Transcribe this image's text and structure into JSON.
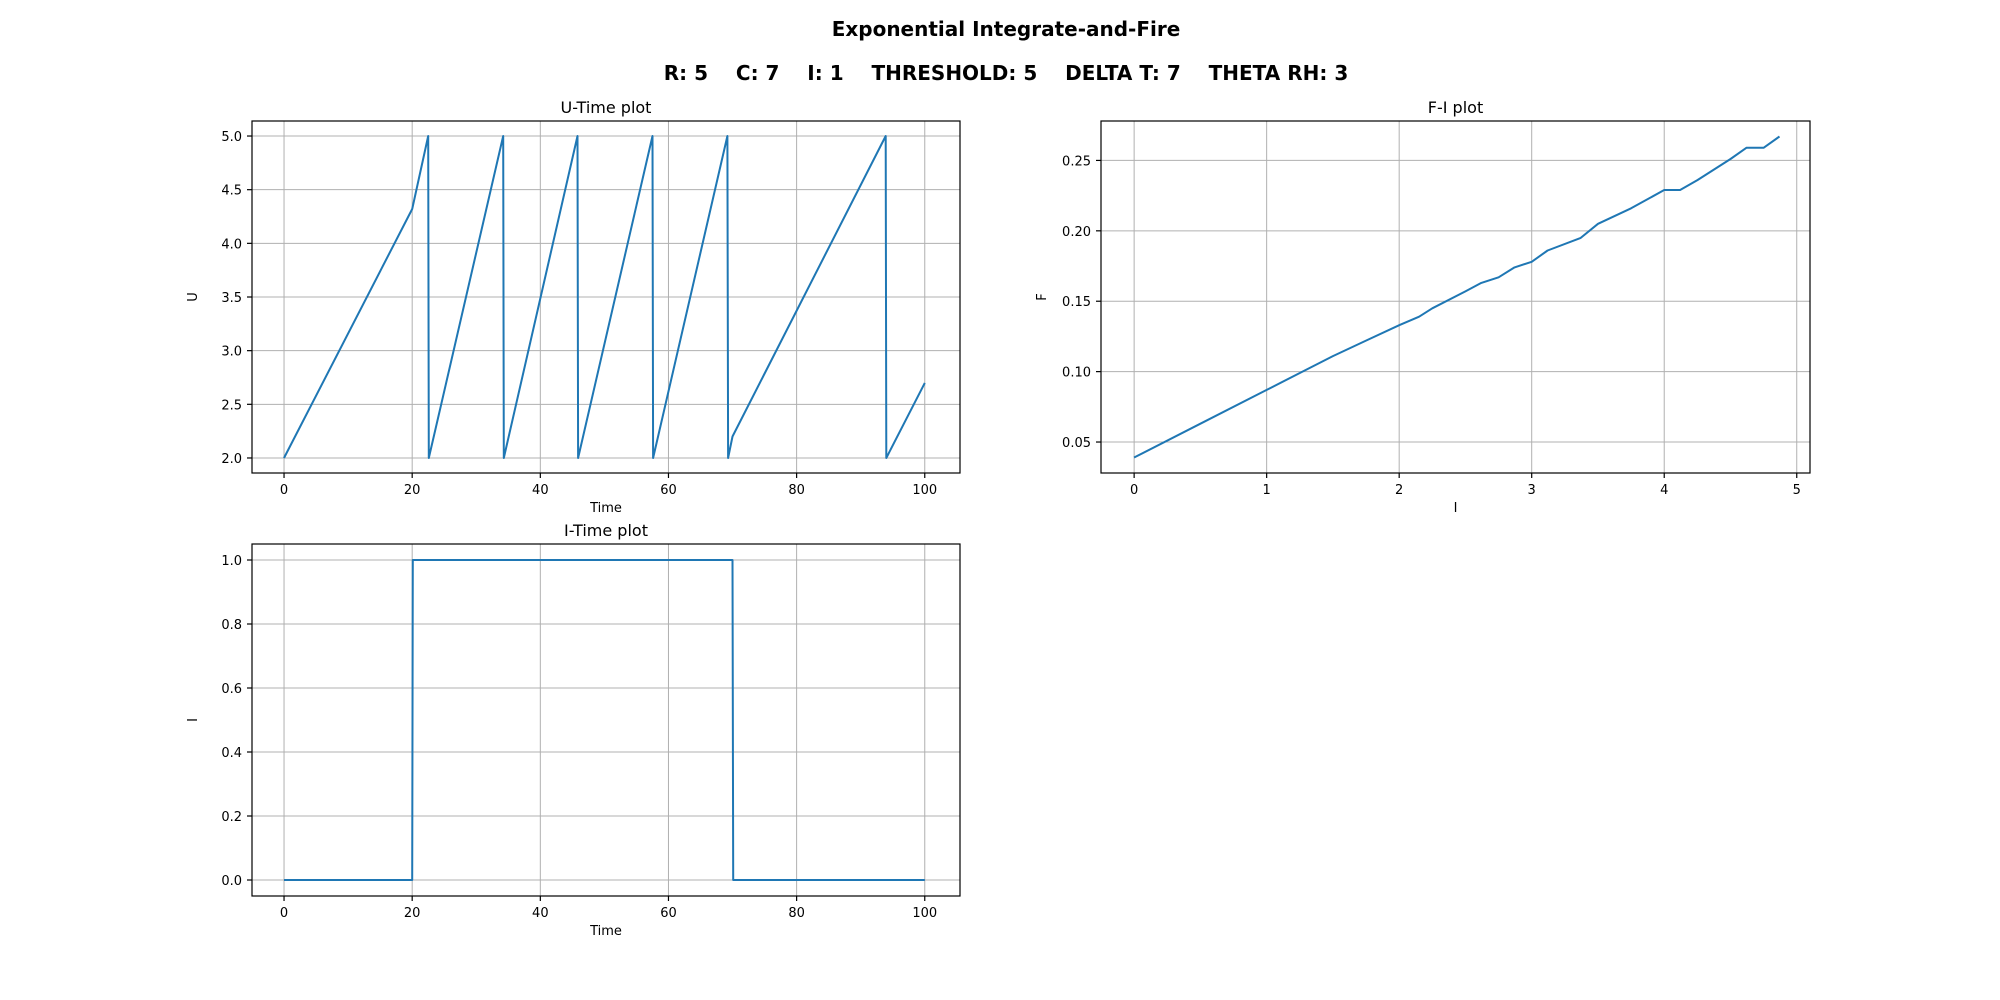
{
  "figure": {
    "title": "Exponential Integrate-and-Fire",
    "params_line": "R: 5    C: 7    I: 1    THRESHOLD: 5    DELTA T: 7    THETA RH: 3"
  },
  "colors": {
    "series": "#1f77b4",
    "grid": "#b0b0b0"
  },
  "chart_data": [
    {
      "id": "u_time",
      "type": "line",
      "title": "U-Time plot",
      "xlabel": "Time",
      "ylabel": "U",
      "xlim": [
        -5,
        105.5
      ],
      "ylim": [
        1.86,
        5.14
      ],
      "xticks": [
        0,
        20,
        40,
        60,
        80,
        100
      ],
      "xtick_labels": [
        "0",
        "20",
        "40",
        "60",
        "80",
        "100"
      ],
      "yticks": [
        2.0,
        2.5,
        3.0,
        3.5,
        4.0,
        4.5,
        5.0
      ],
      "ytick_labels": [
        "2.0",
        "2.5",
        "3.0",
        "3.5",
        "4.0",
        "4.5",
        "5.0"
      ],
      "grid": true,
      "series": [
        {
          "x": [
            0,
            20,
            22.5,
            22.6,
            34.2,
            34.3,
            45.8,
            45.9,
            57.5,
            57.6,
            69.2,
            69.3,
            70,
            93.9,
            94.0,
            100
          ],
          "y": [
            2.0,
            4.32,
            5.0,
            2.0,
            5.0,
            2.0,
            5.0,
            2.0,
            5.0,
            2.0,
            5.0,
            2.0,
            2.2,
            5.0,
            2.0,
            2.7
          ]
        }
      ]
    },
    {
      "id": "f_i",
      "type": "line",
      "title": "F-I plot",
      "xlabel": "I",
      "ylabel": "F",
      "xlim": [
        -0.25,
        5.1
      ],
      "ylim": [
        0.028,
        0.278
      ],
      "xticks": [
        0,
        1,
        2,
        3,
        4,
        5
      ],
      "xtick_labels": [
        "0",
        "1",
        "2",
        "3",
        "4",
        "5"
      ],
      "yticks": [
        0.05,
        0.1,
        0.15,
        0.2,
        0.25
      ],
      "ytick_labels": [
        "0.05",
        "0.10",
        "0.15",
        "0.20",
        "0.25"
      ],
      "grid": true,
      "series": [
        {
          "x": [
            0,
            0.5,
            1.0,
            1.25,
            1.5,
            1.75,
            2.0,
            2.15,
            2.25,
            2.5,
            2.62,
            2.75,
            2.87,
            3.0,
            3.12,
            3.37,
            3.5,
            3.75,
            4.0,
            4.12,
            4.25,
            4.5,
            4.62,
            4.75,
            4.87
          ],
          "y": [
            0.039,
            0.063,
            0.087,
            0.099,
            0.111,
            0.122,
            0.133,
            0.139,
            0.145,
            0.157,
            0.163,
            0.167,
            0.174,
            0.178,
            0.186,
            0.195,
            0.205,
            0.216,
            0.229,
            0.229,
            0.236,
            0.251,
            0.259,
            0.259,
            0.267
          ]
        }
      ]
    },
    {
      "id": "i_time",
      "type": "line",
      "title": "I-Time plot",
      "xlabel": "Time",
      "ylabel": "I",
      "xlim": [
        -5,
        105.5
      ],
      "ylim": [
        -0.05,
        1.05
      ],
      "xticks": [
        0,
        20,
        40,
        60,
        80,
        100
      ],
      "xtick_labels": [
        "0",
        "20",
        "40",
        "60",
        "80",
        "100"
      ],
      "yticks": [
        0.0,
        0.2,
        0.4,
        0.6,
        0.8,
        1.0
      ],
      "ytick_labels": [
        "0.0",
        "0.2",
        "0.4",
        "0.6",
        "0.8",
        "1.0"
      ],
      "grid": true,
      "series": [
        {
          "x": [
            0,
            20,
            20.1,
            70,
            70.1,
            100
          ],
          "y": [
            0,
            0,
            1,
            1,
            0,
            0
          ]
        }
      ]
    }
  ]
}
